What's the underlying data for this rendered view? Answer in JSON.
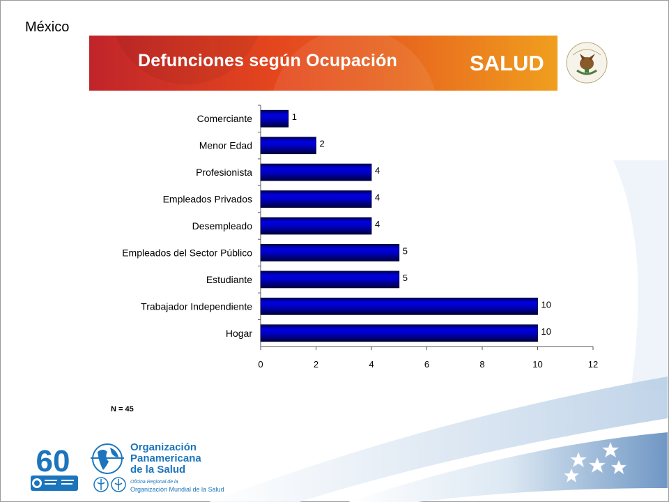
{
  "page": {
    "country_label": "México"
  },
  "banner": {
    "title": "Defunciones según Ocupación",
    "brand": "SALUD",
    "colors": {
      "red": "#c62b24",
      "orange": "#e85a1c",
      "amber": "#f0a020"
    },
    "seal_icon": "mexican-coat-of-arms-icon"
  },
  "chart_data": {
    "type": "bar",
    "orientation": "horizontal",
    "title": "",
    "xlabel": "",
    "ylabel": "",
    "categories": [
      "Comerciante",
      "Menor Edad",
      "Profesionista",
      "Empleados Privados",
      "Desempleado",
      "Empleados del Sector Público",
      "Estudiante",
      "Trabajador Independiente",
      "Hogar"
    ],
    "values": [
      1,
      2,
      4,
      4,
      4,
      5,
      5,
      10,
      10
    ],
    "xlim": [
      0,
      12
    ],
    "xticks": [
      0,
      2,
      4,
      6,
      8,
      10,
      12
    ],
    "data_labels": true,
    "grid": false,
    "bar_color": "#0000c8",
    "note": "N = 45"
  },
  "footer": {
    "logo_60": {
      "number": "60",
      "icon": "who-60-anniversary-logo"
    },
    "org_name": "Organización\nPanamericana\nde la Salud",
    "regional_office": "Oficina Regional de la",
    "who_name": "Organización Mundial de la Salud",
    "icons": [
      "paho-globe-icon",
      "paho-emblem-icon",
      "who-emblem-icon",
      "stars-icon"
    ]
  }
}
